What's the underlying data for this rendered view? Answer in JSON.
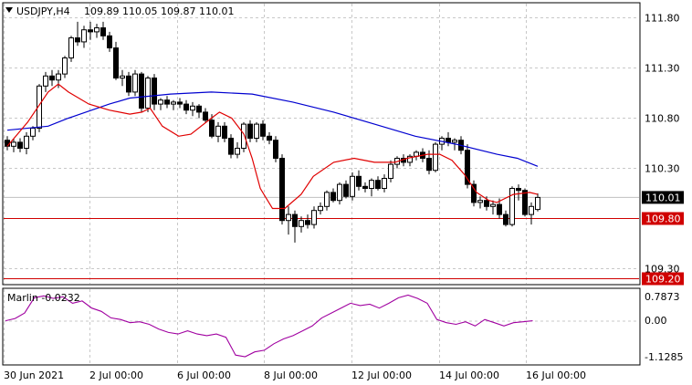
{
  "header": {
    "symbol": "USDJPY,H4",
    "quote": "109.89 110.05 109.87 110.01",
    "arrow_icon": "triangle-down-icon"
  },
  "indicator": {
    "label": "Marlin -0.0232"
  },
  "price_axis": {
    "ticks": [
      "111.80",
      "111.30",
      "110.80",
      "110.30",
      "109.30"
    ],
    "current_price": "110.01",
    "levels": [
      "109.80",
      "109.20"
    ]
  },
  "indicator_axis": {
    "ticks": [
      "0.7873",
      "0.00",
      "-1.1285"
    ]
  },
  "time_axis": {
    "labels": [
      "30 Jun 2021",
      "2 Jul 00:00",
      "6 Jul 00:00",
      "8 Jul 00:00",
      "12 Jul 00:00",
      "14 Jul 00:00",
      "16 Jul 00:00"
    ]
  },
  "colors": {
    "ma_fast": "#e00000",
    "ma_slow": "#0000d0",
    "level_line": "#d00000",
    "marlin": "#a000a0",
    "grid": "#c8c8c8"
  },
  "chart_data": {
    "type": "candlestick",
    "title": "USDJPY,H4",
    "ylim": [
      109.15,
      111.95
    ],
    "y_ticks": [
      111.8,
      111.3,
      110.8,
      110.3,
      109.3
    ],
    "horizontal_levels": [
      109.8,
      109.2
    ],
    "current_price": 110.01,
    "candles": [
      [
        110.58,
        110.62,
        110.48,
        110.52
      ],
      [
        110.52,
        110.6,
        110.46,
        110.56
      ],
      [
        110.56,
        110.6,
        110.46,
        110.5
      ],
      [
        110.5,
        110.66,
        110.44,
        110.62
      ],
      [
        110.62,
        110.72,
        110.58,
        110.7
      ],
      [
        110.7,
        111.14,
        110.66,
        111.12
      ],
      [
        111.12,
        111.26,
        111.06,
        111.22
      ],
      [
        111.22,
        111.28,
        111.12,
        111.18
      ],
      [
        111.18,
        111.28,
        111.1,
        111.24
      ],
      [
        111.24,
        111.42,
        111.2,
        111.4
      ],
      [
        111.4,
        111.62,
        111.36,
        111.6
      ],
      [
        111.6,
        111.76,
        111.52,
        111.56
      ],
      [
        111.56,
        111.72,
        111.5,
        111.68
      ],
      [
        111.68,
        111.76,
        111.58,
        111.66
      ],
      [
        111.66,
        111.74,
        111.6,
        111.7
      ],
      [
        111.7,
        111.76,
        111.58,
        111.62
      ],
      [
        111.62,
        111.66,
        111.46,
        111.5
      ],
      [
        111.5,
        111.56,
        111.18,
        111.2
      ],
      [
        111.2,
        111.28,
        111.12,
        111.22
      ],
      [
        111.22,
        111.26,
        111.02,
        111.06
      ],
      [
        111.06,
        111.28,
        111.02,
        111.24
      ],
      [
        111.24,
        111.26,
        110.86,
        110.9
      ],
      [
        110.9,
        111.22,
        110.86,
        111.2
      ],
      [
        111.2,
        111.24,
        110.88,
        110.94
      ],
      [
        110.94,
        111.0,
        110.88,
        110.98
      ],
      [
        110.98,
        111.02,
        110.9,
        110.94
      ],
      [
        110.94,
        110.98,
        110.88,
        110.96
      ],
      [
        110.96,
        111.0,
        110.9,
        110.94
      ],
      [
        110.94,
        110.98,
        110.84,
        110.88
      ],
      [
        110.88,
        110.96,
        110.82,
        110.92
      ],
      [
        110.92,
        110.94,
        110.8,
        110.86
      ],
      [
        110.86,
        110.9,
        110.76,
        110.78
      ],
      [
        110.78,
        110.84,
        110.6,
        110.62
      ],
      [
        110.62,
        110.76,
        110.56,
        110.72
      ],
      [
        110.72,
        110.76,
        110.56,
        110.6
      ],
      [
        110.6,
        110.64,
        110.4,
        110.44
      ],
      [
        110.44,
        110.56,
        110.4,
        110.5
      ],
      [
        110.5,
        110.76,
        110.46,
        110.74
      ],
      [
        110.74,
        110.78,
        110.56,
        110.6
      ],
      [
        110.6,
        110.76,
        110.56,
        110.74
      ],
      [
        110.74,
        110.78,
        110.58,
        110.62
      ],
      [
        110.62,
        110.66,
        110.54,
        110.58
      ],
      [
        110.58,
        110.62,
        110.36,
        110.4
      ],
      [
        110.4,
        110.44,
        109.74,
        109.78
      ],
      [
        109.78,
        109.92,
        109.64,
        109.84
      ],
      [
        109.84,
        109.88,
        109.56,
        109.72
      ],
      [
        109.72,
        109.82,
        109.66,
        109.78
      ],
      [
        109.78,
        109.84,
        109.7,
        109.74
      ],
      [
        109.74,
        109.92,
        109.7,
        109.88
      ],
      [
        109.88,
        109.96,
        109.84,
        109.92
      ],
      [
        109.92,
        110.08,
        109.88,
        110.06
      ],
      [
        110.06,
        110.1,
        109.96,
        109.98
      ],
      [
        109.98,
        110.16,
        109.94,
        110.14
      ],
      [
        110.14,
        110.18,
        110.0,
        110.02
      ],
      [
        110.02,
        110.26,
        109.98,
        110.22
      ],
      [
        110.22,
        110.28,
        110.08,
        110.12
      ],
      [
        110.12,
        110.16,
        110.06,
        110.1
      ],
      [
        110.1,
        110.2,
        110.02,
        110.18
      ],
      [
        110.18,
        110.22,
        110.08,
        110.1
      ],
      [
        110.1,
        110.24,
        110.06,
        110.2
      ],
      [
        110.2,
        110.38,
        110.16,
        110.34
      ],
      [
        110.34,
        110.42,
        110.3,
        110.4
      ],
      [
        110.4,
        110.44,
        110.32,
        110.36
      ],
      [
        110.36,
        110.44,
        110.32,
        110.42
      ],
      [
        110.42,
        110.48,
        110.38,
        110.46
      ],
      [
        110.46,
        110.5,
        110.36,
        110.4
      ],
      [
        110.4,
        110.48,
        110.24,
        110.28
      ],
      [
        110.28,
        110.56,
        110.26,
        110.54
      ],
      [
        110.54,
        110.62,
        110.48,
        110.6
      ],
      [
        110.6,
        110.66,
        110.52,
        110.56
      ],
      [
        110.56,
        110.6,
        110.48,
        110.58
      ],
      [
        110.58,
        110.62,
        110.44,
        110.48
      ],
      [
        110.48,
        110.54,
        110.1,
        110.14
      ],
      [
        110.14,
        110.18,
        109.92,
        109.96
      ],
      [
        109.96,
        110.02,
        109.9,
        109.98
      ],
      [
        109.98,
        110.02,
        109.88,
        109.92
      ],
      [
        109.92,
        109.98,
        109.84,
        109.94
      ],
      [
        109.94,
        110.0,
        109.8,
        109.84
      ],
      [
        109.84,
        109.88,
        109.72,
        109.74
      ],
      [
        109.74,
        110.12,
        109.72,
        110.1
      ],
      [
        110.1,
        110.14,
        109.98,
        110.08
      ],
      [
        110.08,
        110.1,
        109.82,
        109.84
      ],
      [
        109.84,
        109.96,
        109.74,
        109.92
      ],
      [
        109.89,
        110.05,
        109.87,
        110.01
      ]
    ],
    "ma_fast": [
      [
        0,
        110.52
      ],
      [
        10,
        110.76
      ],
      [
        20,
        111.06
      ],
      [
        25,
        111.14
      ],
      [
        30,
        111.06
      ],
      [
        40,
        110.94
      ],
      [
        50,
        110.88
      ],
      [
        60,
        110.84
      ],
      [
        66,
        110.86
      ],
      [
        70,
        110.9
      ],
      [
        76,
        110.72
      ],
      [
        84,
        110.62
      ],
      [
        90,
        110.64
      ],
      [
        100,
        110.8
      ],
      [
        104,
        110.86
      ],
      [
        110,
        110.8
      ],
      [
        116,
        110.64
      ],
      [
        120,
        110.4
      ],
      [
        124,
        110.1
      ],
      [
        130,
        109.9
      ],
      [
        136,
        109.9
      ],
      [
        144,
        110.04
      ],
      [
        150,
        110.22
      ],
      [
        160,
        110.36
      ],
      [
        170,
        110.4
      ],
      [
        180,
        110.36
      ],
      [
        190,
        110.36
      ],
      [
        196,
        110.4
      ],
      [
        206,
        110.44
      ],
      [
        212,
        110.44
      ],
      [
        218,
        110.38
      ],
      [
        224,
        110.24
      ],
      [
        230,
        110.06
      ],
      [
        236,
        109.98
      ],
      [
        240,
        109.96
      ],
      [
        248,
        110.04
      ],
      [
        256,
        110.06
      ],
      [
        260,
        110.04
      ]
    ],
    "ma_slow": [
      [
        0,
        110.68
      ],
      [
        20,
        110.72
      ],
      [
        30,
        110.8
      ],
      [
        50,
        110.94
      ],
      [
        60,
        111.0
      ],
      [
        80,
        111.04
      ],
      [
        100,
        111.06
      ],
      [
        120,
        111.04
      ],
      [
        140,
        110.96
      ],
      [
        160,
        110.86
      ],
      [
        180,
        110.74
      ],
      [
        200,
        110.62
      ],
      [
        220,
        110.54
      ],
      [
        240,
        110.44
      ],
      [
        250,
        110.4
      ],
      [
        260,
        110.32
      ]
    ],
    "marlin": [
      [
        0,
        0.01
      ],
      [
        5,
        0.08
      ],
      [
        10,
        0.25
      ],
      [
        15,
        0.72
      ],
      [
        20,
        0.78
      ],
      [
        25,
        0.7
      ],
      [
        30,
        0.75
      ],
      [
        35,
        0.55
      ],
      [
        40,
        0.62
      ],
      [
        45,
        0.4
      ],
      [
        50,
        0.3
      ],
      [
        55,
        0.1
      ],
      [
        60,
        0.05
      ],
      [
        65,
        -0.05
      ],
      [
        70,
        -0.02
      ],
      [
        75,
        -0.1
      ],
      [
        80,
        -0.25
      ],
      [
        85,
        -0.35
      ],
      [
        90,
        -0.4
      ],
      [
        95,
        -0.3
      ],
      [
        100,
        -0.4
      ],
      [
        105,
        -0.45
      ],
      [
        110,
        -0.4
      ],
      [
        115,
        -0.5
      ],
      [
        120,
        -1.05
      ],
      [
        125,
        -1.1
      ],
      [
        130,
        -0.95
      ],
      [
        135,
        -0.9
      ],
      [
        140,
        -0.7
      ],
      [
        145,
        -0.55
      ],
      [
        150,
        -0.45
      ],
      [
        155,
        -0.3
      ],
      [
        160,
        -0.15
      ],
      [
        165,
        0.1
      ],
      [
        170,
        0.25
      ],
      [
        175,
        0.4
      ],
      [
        180,
        0.55
      ],
      [
        185,
        0.48
      ],
      [
        190,
        0.52
      ],
      [
        195,
        0.4
      ],
      [
        200,
        0.55
      ],
      [
        205,
        0.72
      ],
      [
        210,
        0.8
      ],
      [
        215,
        0.7
      ],
      [
        220,
        0.55
      ],
      [
        225,
        0.05
      ],
      [
        230,
        -0.05
      ],
      [
        235,
        -0.1
      ],
      [
        240,
        -0.02
      ],
      [
        245,
        -0.15
      ],
      [
        250,
        0.05
      ],
      [
        255,
        -0.05
      ],
      [
        260,
        -0.15
      ],
      [
        265,
        -0.05
      ],
      [
        270,
        -0.02
      ],
      [
        275,
        0.01
      ]
    ],
    "marlin_ylim": [
      -1.1285,
      0.7873
    ],
    "marlin_value": -0.0232
  }
}
